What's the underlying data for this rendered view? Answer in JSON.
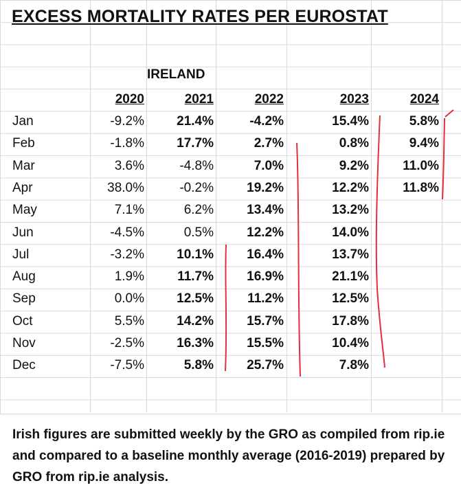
{
  "title": "EXCESS MORTALITY RATES PER EUROSTAT",
  "country": "IRELAND",
  "years": [
    "2020",
    "2021",
    "2022",
    "2023",
    "2024"
  ],
  "rows": [
    {
      "month": "Jan",
      "v": [
        "-9.2%",
        "21.4%",
        "-4.2%",
        "15.4%",
        "5.8%"
      ]
    },
    {
      "month": "Feb",
      "v": [
        "-1.8%",
        "17.7%",
        "2.7%",
        "0.8%",
        "9.4%"
      ]
    },
    {
      "month": "Mar",
      "v": [
        "3.6%",
        "-4.8%",
        "7.0%",
        "9.2%",
        "11.0%"
      ]
    },
    {
      "month": "Apr",
      "v": [
        "38.0%",
        "-0.2%",
        "19.2%",
        "12.2%",
        "11.8%"
      ]
    },
    {
      "month": "May",
      "v": [
        "7.1%",
        "6.2%",
        "13.4%",
        "13.2%",
        ""
      ]
    },
    {
      "month": "Jun",
      "v": [
        "-4.5%",
        "0.5%",
        "12.2%",
        "14.0%",
        ""
      ]
    },
    {
      "month": "Jul",
      "v": [
        "-3.2%",
        "10.1%",
        "16.4%",
        "13.7%",
        ""
      ]
    },
    {
      "month": "Aug",
      "v": [
        "1.9%",
        "11.7%",
        "16.9%",
        "21.1%",
        ""
      ]
    },
    {
      "month": "Sep",
      "v": [
        "0.0%",
        "12.5%",
        "11.2%",
        "12.5%",
        ""
      ]
    },
    {
      "month": "Oct",
      "v": [
        "5.5%",
        "14.2%",
        "15.7%",
        "17.8%",
        ""
      ]
    },
    {
      "month": "Nov",
      "v": [
        "-2.5%",
        "16.3%",
        "15.5%",
        "10.4%",
        ""
      ]
    },
    {
      "month": "Dec",
      "v": [
        "-7.5%",
        "5.8%",
        "25.7%",
        "7.8%",
        ""
      ]
    }
  ],
  "bold_2021_months": [
    "Jan",
    "Feb",
    "Jul",
    "Aug",
    "Sep",
    "Oct",
    "Nov",
    "Dec"
  ],
  "note": "Irish figures are submitted weekly by the GRO as compiled from rip.ie and compared to a baseline monthly average (2016-2019) prepared by GRO from rip.ie analysis.",
  "colors": {
    "grid": "#d9d9d9",
    "pen": "#e0303a",
    "text": "#111111"
  }
}
